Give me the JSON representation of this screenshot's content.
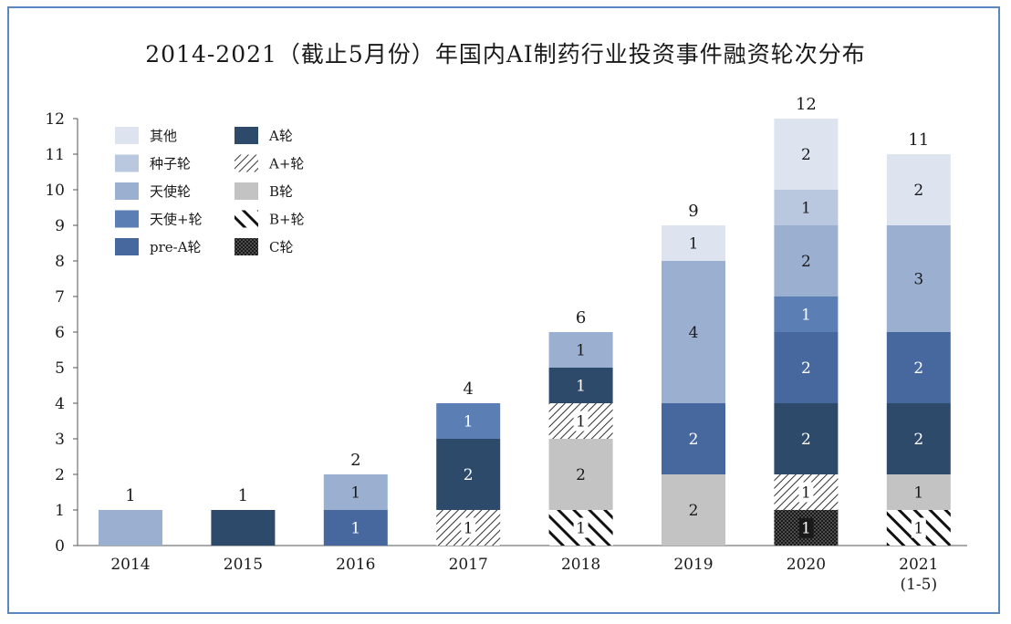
{
  "chart_data": {
    "type": "bar",
    "stacked": true,
    "title": "2014-2021（截止5月份）年国内AI制药行业投资事件融资轮次分布",
    "categories": [
      {
        "label": "2014",
        "sublabel": ""
      },
      {
        "label": "2015",
        "sublabel": ""
      },
      {
        "label": "2016",
        "sublabel": ""
      },
      {
        "label": "2017",
        "sublabel": ""
      },
      {
        "label": "2018",
        "sublabel": ""
      },
      {
        "label": "2019",
        "sublabel": ""
      },
      {
        "label": "2020",
        "sublabel": ""
      },
      {
        "label": "2021",
        "sublabel": "(1-5)"
      }
    ],
    "ylim": [
      0,
      12
    ],
    "yticks": [
      "0",
      "1",
      "2",
      "3",
      "4",
      "5",
      "6",
      "7",
      "8",
      "9",
      "10",
      "11",
      "12"
    ],
    "grid": false,
    "legend_position": "top-left",
    "totals": [
      "1",
      "1",
      "2",
      "4",
      "6",
      "9",
      "12",
      "11"
    ],
    "series": [
      {
        "name": "C轮",
        "color": "#1a1a1a",
        "pattern": "dots",
        "values": [
          0,
          0,
          0,
          0,
          0,
          0,
          1,
          0
        ],
        "labels": [
          "",
          "",
          "",
          "",
          "",
          "",
          "1",
          ""
        ]
      },
      {
        "name": "B+轮",
        "color": "#111111",
        "pattern": "thick-hatch",
        "values": [
          0,
          0,
          0,
          0,
          1,
          0,
          0,
          1
        ],
        "labels": [
          "",
          "",
          "",
          "",
          "1",
          "",
          "",
          "1"
        ]
      },
      {
        "name": "B轮",
        "color": "#c3c3c3",
        "pattern": "solid",
        "values": [
          0,
          0,
          0,
          0,
          2,
          2,
          0,
          1
        ],
        "labels": [
          "",
          "",
          "",
          "",
          "2",
          "2",
          "",
          "1"
        ]
      },
      {
        "name": "A+轮",
        "color": "#333333",
        "pattern": "thin-hatch",
        "values": [
          0,
          0,
          0,
          1,
          1,
          0,
          1,
          0
        ],
        "labels": [
          "",
          "",
          "",
          "1",
          "1",
          "",
          "1",
          ""
        ]
      },
      {
        "name": "A轮",
        "color": "#2e4a6b",
        "pattern": "solid",
        "values": [
          0,
          1,
          0,
          2,
          1,
          0,
          2,
          2
        ],
        "labels": [
          "",
          "",
          "",
          "2",
          "1",
          "",
          "2",
          "2"
        ]
      },
      {
        "name": "pre-A轮",
        "color": "#46689e",
        "pattern": "solid",
        "values": [
          0,
          0,
          1,
          0,
          0,
          2,
          2,
          2
        ],
        "labels": [
          "",
          "",
          "1",
          "",
          "",
          "2",
          "2",
          "2"
        ]
      },
      {
        "name": "天使+轮",
        "color": "#5b7fb5",
        "pattern": "solid",
        "values": [
          0,
          0,
          0,
          1,
          0,
          0,
          1,
          0
        ],
        "labels": [
          "",
          "",
          "",
          "1",
          "",
          "",
          "1",
          ""
        ]
      },
      {
        "name": "天使轮",
        "color": "#9bb0d1",
        "pattern": "solid",
        "values": [
          1,
          0,
          1,
          0,
          1,
          4,
          2,
          3
        ],
        "labels": [
          "",
          "",
          "1",
          "",
          "1",
          "4",
          "2",
          "3"
        ]
      },
      {
        "name": "种子轮",
        "color": "#b9c8df",
        "pattern": "solid",
        "values": [
          0,
          0,
          0,
          0,
          0,
          0,
          1,
          0
        ],
        "labels": [
          "",
          "",
          "",
          "",
          "",
          "",
          "1",
          ""
        ]
      },
      {
        "name": "其他",
        "color": "#dde4ef",
        "pattern": "solid",
        "values": [
          0,
          0,
          0,
          0,
          0,
          1,
          2,
          2
        ],
        "labels": [
          "",
          "",
          "",
          "",
          "",
          "1",
          "2",
          "2"
        ]
      }
    ],
    "legend": [
      {
        "name": "其他",
        "color": "#dde4ef",
        "pattern": "solid"
      },
      {
        "name": "A轮",
        "color": "#2e4a6b",
        "pattern": "solid"
      },
      {
        "name": "种子轮",
        "color": "#b9c8df",
        "pattern": "solid"
      },
      {
        "name": "A+轮",
        "color": "#333333",
        "pattern": "thin-hatch"
      },
      {
        "name": "天使轮",
        "color": "#9bb0d1",
        "pattern": "solid"
      },
      {
        "name": "B轮",
        "color": "#c3c3c3",
        "pattern": "solid"
      },
      {
        "name": "天使+轮",
        "color": "#5b7fb5",
        "pattern": "solid"
      },
      {
        "name": "B+轮",
        "color": "#111111",
        "pattern": "thick-hatch"
      },
      {
        "name": "pre-A轮",
        "color": "#46689e",
        "pattern": "solid"
      },
      {
        "name": "C轮",
        "color": "#1a1a1a",
        "pattern": "dots"
      }
    ]
  }
}
